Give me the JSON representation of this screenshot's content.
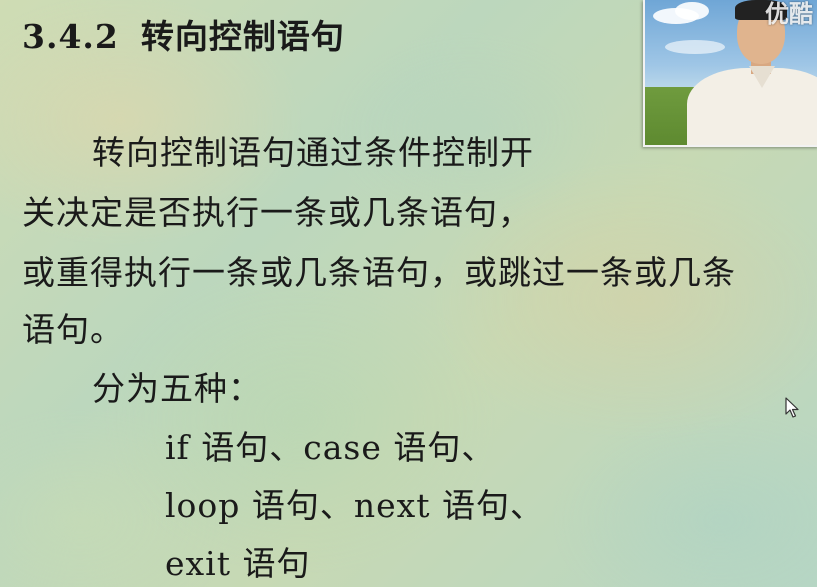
{
  "slide": {
    "title_number": "3.4.2",
    "title_text": "转向控制语句",
    "lines": [
      "转向控制语句通过条件控制开",
      "关决定是否执行一条或几条语句，",
      "或重得执行一条或几条语句，或跳过一条或几条",
      "语句。",
      "分为五种：",
      "if 语句、case 语句、",
      "loop 语句、next 语句、",
      "exit 语句"
    ]
  },
  "video": {
    "watermark": "优酷"
  },
  "cursor_icon": "mouse-pointer-icon"
}
